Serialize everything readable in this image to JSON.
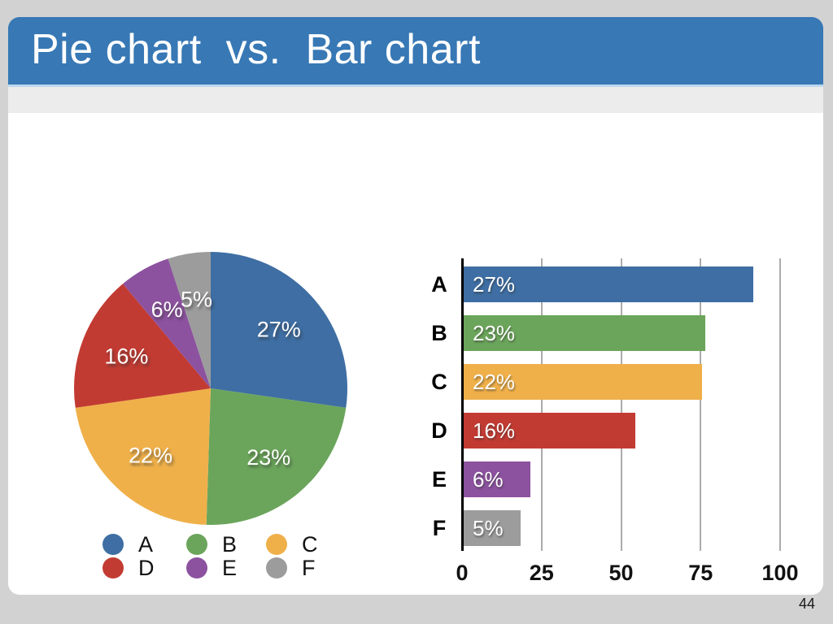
{
  "slide": {
    "title": "Pie chart  vs.  Bar chart",
    "page_number": "44"
  },
  "colors": {
    "page_background": "#D2D2D2",
    "title_bar": "#3778B5",
    "title_bar_highlight": "#BDD8EF",
    "title_text": "#FFFFFF",
    "card_background": "#FFFFFF",
    "card_strip": "#ECECEC",
    "gridline": "#ABABAB",
    "axis_line": "#000000",
    "label_text": "#111111"
  },
  "legend": {
    "items": [
      {
        "label": "A",
        "color": "#3E6EA3"
      },
      {
        "label": "B",
        "color": "#6BA55B"
      },
      {
        "label": "C",
        "color": "#EFB04A"
      },
      {
        "label": "D",
        "color": "#C23B32"
      },
      {
        "label": "E",
        "color": "#8C529F"
      },
      {
        "label": "F",
        "color": "#9C9C9C"
      }
    ],
    "columns": 3,
    "position": "below-pie"
  },
  "chart_data": [
    {
      "type": "pie",
      "categories": [
        "A",
        "B",
        "C",
        "D",
        "E",
        "F"
      ],
      "values": [
        27,
        23,
        22,
        16,
        6,
        5
      ],
      "slice_labels": [
        "27%",
        "23%",
        "22%",
        "16%",
        "6%",
        "5%"
      ],
      "colors": [
        "#3E6EA3",
        "#6BA55B",
        "#EFB04A",
        "#C23B32",
        "#8C529F",
        "#9C9C9C"
      ],
      "start_angle": "top",
      "direction": "clockwise",
      "label_radius_fraction": 0.66,
      "title": "",
      "legend_position": "bottom"
    },
    {
      "type": "bar",
      "orientation": "horizontal",
      "categories": [
        "A",
        "B",
        "C",
        "D",
        "E",
        "F"
      ],
      "values": [
        91,
        76,
        75,
        54,
        21,
        18
      ],
      "bar_labels": [
        "27%",
        "23%",
        "22%",
        "16%",
        "6%",
        "5%"
      ],
      "colors": [
        "#3E6EA3",
        "#6BA55B",
        "#EFB04A",
        "#C23B32",
        "#8C529F",
        "#9C9C9C"
      ],
      "title": "",
      "xlabel": "",
      "ylabel": "",
      "xlim": [
        0,
        100
      ],
      "xticks": [
        0,
        25,
        50,
        75,
        100
      ],
      "grid": true,
      "legend_position": "none"
    }
  ]
}
